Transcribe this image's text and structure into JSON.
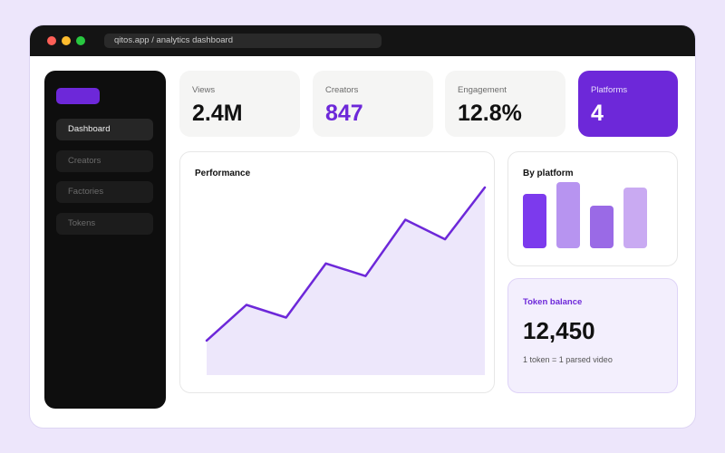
{
  "browser": {
    "url": "qitos.app / analytics dashboard"
  },
  "sidebar": {
    "items": [
      {
        "label": "Dashboard",
        "active": true
      },
      {
        "label": "Creators",
        "active": false
      },
      {
        "label": "Factories",
        "active": false
      },
      {
        "label": "Tokens",
        "active": false
      }
    ]
  },
  "stats": [
    {
      "label": "Views",
      "value": "2.4M"
    },
    {
      "label": "Creators",
      "value": "847"
    },
    {
      "label": "Engagement",
      "value": "12.8%"
    },
    {
      "label": "Platforms",
      "value": "4"
    }
  ],
  "performance": {
    "title": "Performance"
  },
  "by_platform": {
    "title": "By platform"
  },
  "token_balance": {
    "title": "Token balance",
    "value": "12,450",
    "note": "1 token = 1 parsed video"
  },
  "colors": {
    "accent": "#6d28d9",
    "background": "#ede6fb",
    "sidebar": "#0e0e0e"
  },
  "chart_data": [
    {
      "type": "area",
      "title": "Performance",
      "x": [
        1,
        2,
        3,
        4,
        5,
        6,
        7,
        8
      ],
      "values": [
        3,
        6.1,
        5,
        9.7,
        8.6,
        13.5,
        11.8,
        16.3
      ],
      "ylim": [
        0,
        17
      ],
      "color": "#6d28d9",
      "fill": "#ede7fb"
    },
    {
      "type": "bar",
      "title": "By platform",
      "values": [
        60,
        73,
        47,
        67
      ],
      "ylim": [
        0,
        73
      ],
      "colors": [
        "#7c3aed",
        "#b794f0",
        "#9a6ae6",
        "#c9aaf2"
      ]
    }
  ]
}
